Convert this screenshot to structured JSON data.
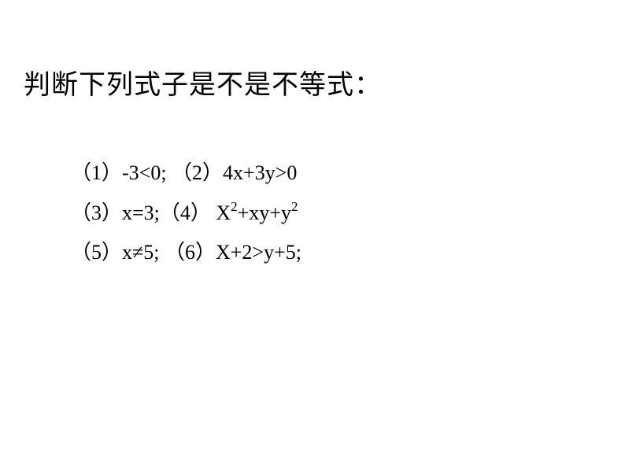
{
  "title": "判断下列式子是不是不等式：",
  "lines": {
    "line1": {
      "part1": "（1）-3<0; （2）4x+3y>0"
    },
    "line2": {
      "prefix": "（3）x=3;（4） X",
      "sup1": "2",
      "mid": "+xy+y",
      "sup2": "2"
    },
    "line3": {
      "text": "（5）x≠5; （6）X+2>y+5;"
    }
  },
  "style": {
    "background": "#ffffff",
    "text_color": "#000000",
    "title_fontsize": 34,
    "body_fontsize": 26,
    "sup_fontsize": 17
  }
}
